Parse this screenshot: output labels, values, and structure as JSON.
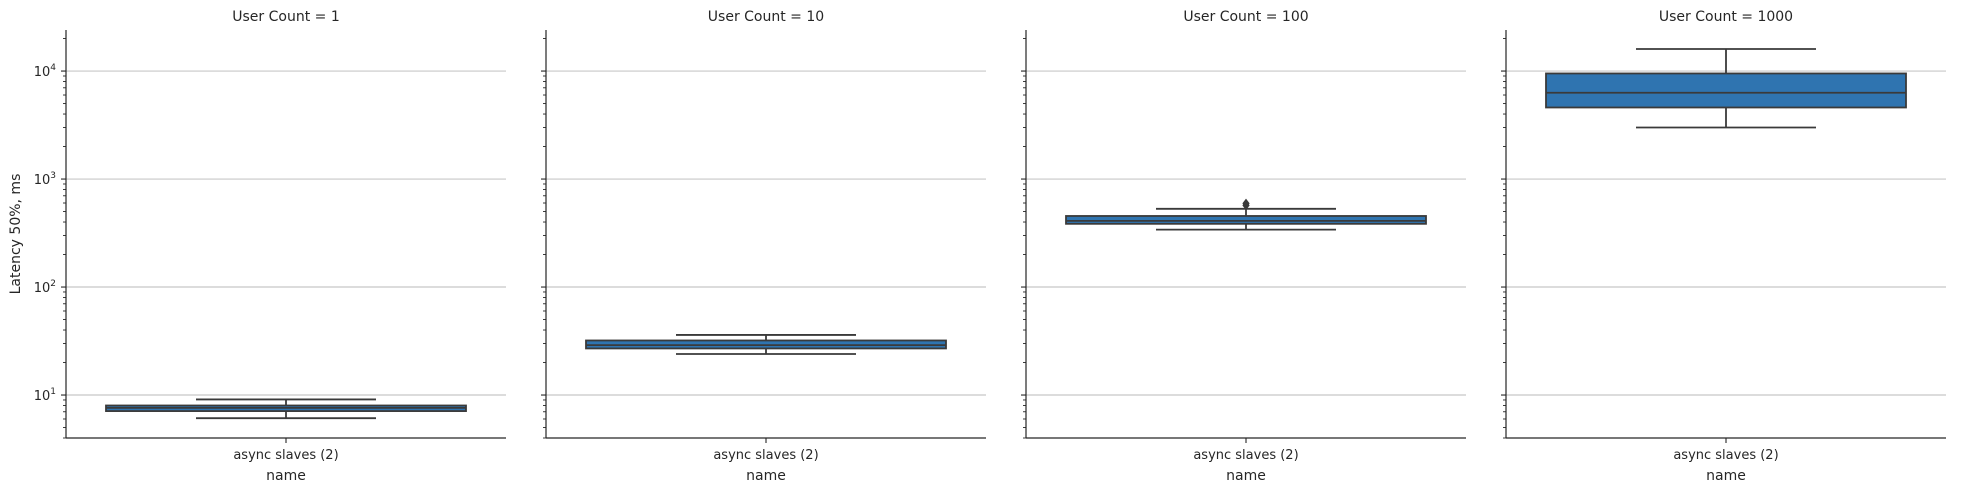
{
  "chart_data": {
    "type": "box",
    "scale": "log",
    "ylabel": "Latency 50%, ms",
    "xlabel": "name",
    "ylim": [
      4,
      24000
    ],
    "grid": "horizontal major",
    "colors": {
      "box": "#2f74b0",
      "line": "#3a3a3a",
      "grid": "#c8c8c8"
    },
    "yticks": [
      {
        "value": 10,
        "base": "10",
        "exp": "1"
      },
      {
        "value": 100,
        "base": "10",
        "exp": "2"
      },
      {
        "value": 1000,
        "base": "10",
        "exp": "3"
      },
      {
        "value": 10000,
        "base": "10",
        "exp": "4"
      }
    ],
    "panels": [
      {
        "title": "User Count = 1",
        "category": "async slaves (2)",
        "whisker_low": 6.1,
        "q1": 7.1,
        "median": 7.6,
        "q3": 8.0,
        "whisker_high": 9.1,
        "outliers": []
      },
      {
        "title": "User Count = 10",
        "category": "async slaves (2)",
        "whisker_low": 24,
        "q1": 27,
        "median": 29,
        "q3": 32,
        "whisker_high": 36,
        "outliers": []
      },
      {
        "title": "User Count = 100",
        "category": "async slaves (2)",
        "whisker_low": 340,
        "q1": 385,
        "median": 410,
        "q3": 455,
        "whisker_high": 530,
        "outliers": [
          570,
          595
        ]
      },
      {
        "title": "User Count = 1000",
        "category": "async slaves (2)",
        "whisker_low": 3000,
        "q1": 4600,
        "median": 6300,
        "q3": 9500,
        "whisker_high": 16000,
        "outliers": []
      }
    ]
  }
}
